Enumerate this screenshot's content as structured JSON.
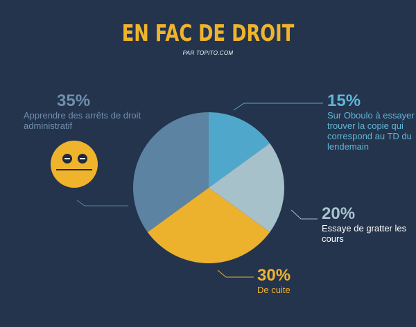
{
  "header": {
    "title": "EN FAC DE DROIT",
    "subtitle": "PAR TOPITO.COM"
  },
  "colors": {
    "background": "#24344d",
    "accent": "#f0b42c"
  },
  "chart_data": {
    "type": "pie",
    "title": "EN FAC DE DROIT",
    "slices": [
      {
        "value": 15,
        "label": "15%",
        "description": "Sur Oboulo à essayer de trouver la copie qui correspond au TD du lendemain",
        "color": "#4fa8cb"
      },
      {
        "value": 20,
        "label": "20%",
        "description": "Essaye de gratter les cours",
        "color": "#a6c1ca"
      },
      {
        "value": 30,
        "label": "30%",
        "description": "De cuite",
        "color": "#ecb12d"
      },
      {
        "value": 35,
        "label": "35%",
        "description": "Apprendre des arrêts de droit administratif",
        "color": "#5d83a3"
      }
    ],
    "start_angle": "12 o'clock",
    "direction": "clockwise"
  },
  "decoration": {
    "icon": "neutral-face-icon"
  }
}
